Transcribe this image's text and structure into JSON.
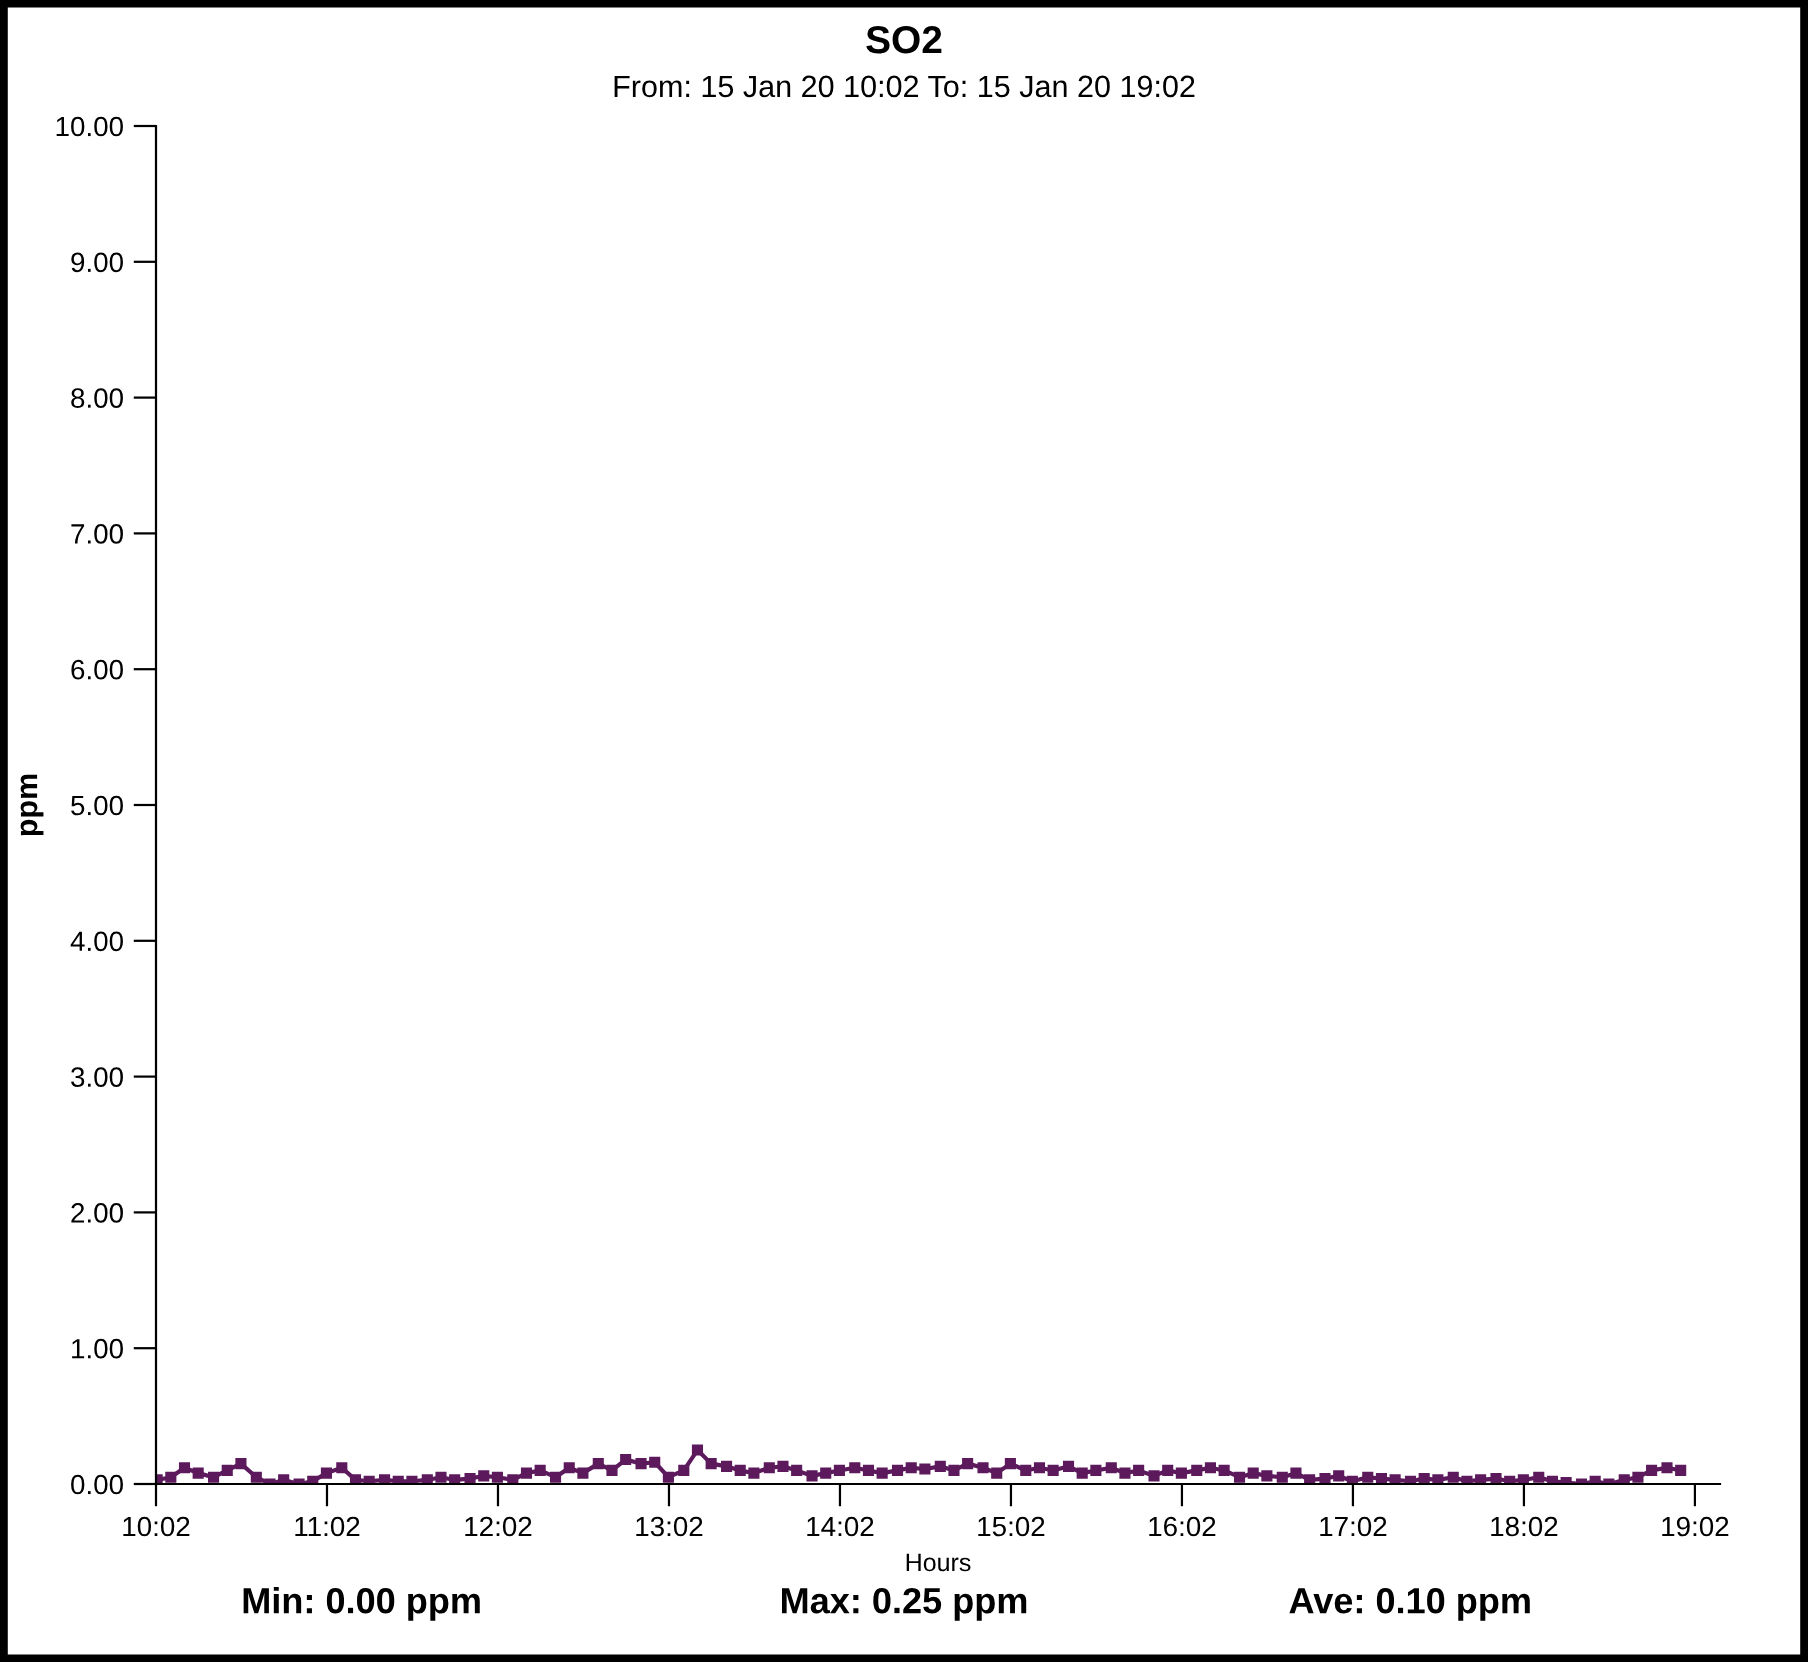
{
  "chart_data": {
    "type": "line",
    "title": "SO2",
    "subtitle": "From: 15 Jan 20 10:02 To: 15 Jan 20 19:02",
    "xlabel": "Hours",
    "ylabel": "ppm",
    "x": [
      10.04,
      10.12,
      10.2,
      10.28,
      10.37,
      10.45,
      10.53,
      10.62,
      10.7,
      10.78,
      10.87,
      10.95,
      11.03,
      11.12,
      11.2,
      11.28,
      11.37,
      11.45,
      11.53,
      11.62,
      11.7,
      11.78,
      11.87,
      11.95,
      12.03,
      12.12,
      12.2,
      12.28,
      12.37,
      12.45,
      12.53,
      12.62,
      12.7,
      12.78,
      12.87,
      12.95,
      13.03,
      13.12,
      13.2,
      13.28,
      13.37,
      13.45,
      13.53,
      13.62,
      13.7,
      13.78,
      13.87,
      13.95,
      14.03,
      14.12,
      14.2,
      14.28,
      14.37,
      14.45,
      14.53,
      14.62,
      14.7,
      14.78,
      14.87,
      14.95,
      15.03,
      15.12,
      15.2,
      15.28,
      15.37,
      15.45,
      15.53,
      15.62,
      15.7,
      15.78,
      15.87,
      15.95,
      16.03,
      16.12,
      16.2,
      16.28,
      16.37,
      16.45,
      16.53,
      16.62,
      16.7,
      16.78,
      16.87,
      16.95,
      17.03,
      17.12,
      17.2,
      17.28,
      17.37,
      17.45,
      17.53,
      17.62,
      17.7,
      17.78,
      17.87,
      17.95,
      18.03,
      18.12,
      18.2,
      18.28,
      18.37,
      18.45,
      18.53,
      18.62,
      18.7,
      18.78,
      18.87,
      18.95
    ],
    "series": [
      {
        "color": "#5c1a5c",
        "values": [
          0.03,
          0.05,
          0.12,
          0.08,
          0.05,
          0.1,
          0.15,
          0.05,
          0.0,
          0.03,
          0.0,
          0.02,
          0.08,
          0.12,
          0.03,
          0.02,
          0.03,
          0.02,
          0.02,
          0.03,
          0.05,
          0.03,
          0.04,
          0.06,
          0.05,
          0.03,
          0.08,
          0.1,
          0.05,
          0.12,
          0.08,
          0.15,
          0.1,
          0.18,
          0.15,
          0.16,
          0.05,
          0.1,
          0.25,
          0.15,
          0.13,
          0.1,
          0.08,
          0.12,
          0.13,
          0.1,
          0.06,
          0.08,
          0.1,
          0.12,
          0.1,
          0.08,
          0.1,
          0.12,
          0.11,
          0.13,
          0.1,
          0.15,
          0.12,
          0.08,
          0.15,
          0.1,
          0.12,
          0.1,
          0.13,
          0.08,
          0.1,
          0.12,
          0.08,
          0.1,
          0.06,
          0.1,
          0.08,
          0.1,
          0.12,
          0.1,
          0.05,
          0.08,
          0.06,
          0.05,
          0.08,
          0.03,
          0.04,
          0.06,
          0.02,
          0.05,
          0.04,
          0.03,
          0.02,
          0.04,
          0.03,
          0.05,
          0.02,
          0.03,
          0.04,
          0.02,
          0.03,
          0.05,
          0.02,
          0.01,
          0.0,
          0.02,
          0.0,
          0.03,
          0.05,
          0.1,
          0.12,
          0.1
        ]
      }
    ],
    "xlim": [
      10.0333,
      19.18
    ],
    "xticks": [
      {
        "value": 10.0333,
        "label": "10:02"
      },
      {
        "value": 11.0333,
        "label": "11:02"
      },
      {
        "value": 12.0333,
        "label": "12:02"
      },
      {
        "value": 13.0333,
        "label": "13:02"
      },
      {
        "value": 14.0333,
        "label": "14:02"
      },
      {
        "value": 15.0333,
        "label": "15:02"
      },
      {
        "value": 16.0333,
        "label": "16:02"
      },
      {
        "value": 17.0333,
        "label": "17:02"
      },
      {
        "value": 18.0333,
        "label": "18:02"
      },
      {
        "value": 19.0333,
        "label": "19:02"
      }
    ],
    "ylim": [
      0,
      10
    ],
    "yticks": [
      {
        "value": 0,
        "label": "0.00"
      },
      {
        "value": 1,
        "label": "1.00"
      },
      {
        "value": 2,
        "label": "2.00"
      },
      {
        "value": 3,
        "label": "3.00"
      },
      {
        "value": 4,
        "label": "4.00"
      },
      {
        "value": 5,
        "label": "5.00"
      },
      {
        "value": 6,
        "label": "6.00"
      },
      {
        "value": 7,
        "label": "7.00"
      },
      {
        "value": 8,
        "label": "8.00"
      },
      {
        "value": 9,
        "label": "9.00"
      },
      {
        "value": 10,
        "label": "10.00"
      }
    ],
    "marker": "square",
    "grid": false,
    "legend": false,
    "annotations": [
      "Min: 0.00 ppm",
      "Max: 0.25 ppm",
      "Ave: 0.10 ppm"
    ]
  }
}
